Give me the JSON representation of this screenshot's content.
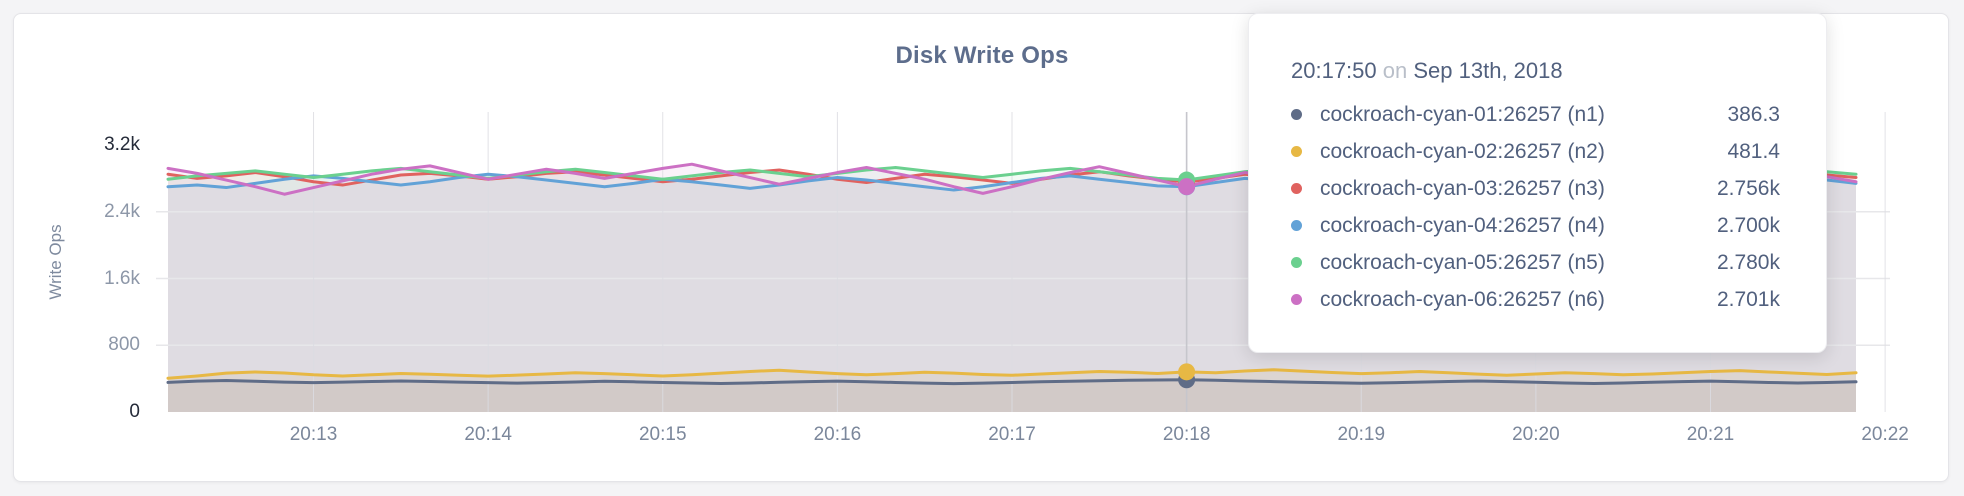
{
  "tooltip": {
    "time": "20:17:50",
    "separator": "on",
    "date": "Sep 13th, 2018",
    "rows": [
      {
        "series": "n1",
        "name": "cockroach-cyan-01:26257 (n1)",
        "value": "386.3",
        "color": "#5f6c87"
      },
      {
        "series": "n2",
        "name": "cockroach-cyan-02:26257 (n2)",
        "value": "481.4",
        "color": "#e7b844"
      },
      {
        "series": "n3",
        "name": "cockroach-cyan-03:26257 (n3)",
        "value": "2.756k",
        "color": "#e0625f"
      },
      {
        "series": "n4",
        "name": "cockroach-cyan-04:26257 (n4)",
        "value": "2.700k",
        "color": "#62a2d7"
      },
      {
        "series": "n5",
        "name": "cockroach-cyan-05:26257 (n5)",
        "value": "2.780k",
        "color": "#6bd08f"
      },
      {
        "series": "n6",
        "name": "cockroach-cyan-06:26257 (n6)",
        "value": "2.701k",
        "color": "#cc70c4"
      }
    ]
  },
  "chart_data": {
    "type": "line",
    "title": "Disk Write Ops",
    "ylabel": "Write Ops",
    "xlabel": "",
    "ylim": [
      0,
      3200
    ],
    "grid": true,
    "legend": "tooltip-only",
    "y_ticks": [
      {
        "label": "3.2k",
        "value": 3200,
        "emph": true
      },
      {
        "label": "2.4k",
        "value": 2400,
        "emph": false
      },
      {
        "label": "1.6k",
        "value": 1600,
        "emph": false
      },
      {
        "label": "800",
        "value": 800,
        "emph": false
      },
      {
        "label": "0",
        "value": 0,
        "emph": true
      }
    ],
    "x_ticks": [
      {
        "label": "20:13",
        "i": 5
      },
      {
        "label": "20:14",
        "i": 11
      },
      {
        "label": "20:15",
        "i": 17
      },
      {
        "label": "20:16",
        "i": 23
      },
      {
        "label": "20:17",
        "i": 29
      },
      {
        "label": "20:18",
        "i": 35
      },
      {
        "label": "20:19",
        "i": 41
      },
      {
        "label": "20:20",
        "i": 47
      },
      {
        "label": "20:21",
        "i": 53
      },
      {
        "label": "20:22",
        "i": 59
      }
    ],
    "hover_index": 35,
    "hover_time": "20:17:50",
    "series": [
      {
        "id": "n1",
        "name": "cockroach-cyan-01:26257 (n1)",
        "color": "#5f6c87",
        "fill_opacity": 0.12,
        "values": [
          355,
          370,
          378,
          368,
          358,
          352,
          358,
          365,
          372,
          366,
          358,
          352,
          346,
          352,
          360,
          368,
          362,
          354,
          348,
          342,
          348,
          356,
          364,
          370,
          362,
          354,
          346,
          340,
          346,
          354,
          362,
          368,
          374,
          380,
          384,
          386.3,
          380,
          372,
          364,
          356,
          350,
          344,
          350,
          358,
          366,
          372,
          364,
          356,
          348,
          342,
          348,
          356,
          364,
          370,
          362,
          354,
          348,
          354,
          362
        ]
      },
      {
        "id": "n2",
        "name": "cockroach-cyan-02:26257 (n2)",
        "color": "#e7b844",
        "fill_opacity": 0.12,
        "values": [
          405,
          432,
          466,
          480,
          468,
          446,
          432,
          446,
          462,
          452,
          440,
          430,
          442,
          456,
          470,
          460,
          446,
          432,
          446,
          466,
          486,
          500,
          480,
          460,
          446,
          460,
          476,
          466,
          450,
          440,
          456,
          470,
          486,
          476,
          462,
          481.4,
          470,
          492,
          506,
          490,
          474,
          460,
          470,
          486,
          470,
          454,
          440,
          456,
          470,
          460,
          446,
          456,
          470,
          486,
          496,
          480,
          464,
          450,
          470
        ]
      },
      {
        "id": "n3",
        "name": "cockroach-cyan-03:26257 (n3)",
        "color": "#e0625f",
        "fill_opacity": 0.09,
        "values": [
          2850,
          2800,
          2830,
          2870,
          2820,
          2760,
          2720,
          2780,
          2840,
          2860,
          2830,
          2790,
          2820,
          2860,
          2880,
          2840,
          2800,
          2760,
          2790,
          2830,
          2870,
          2900,
          2850,
          2790,
          2750,
          2800,
          2850,
          2820,
          2780,
          2740,
          2790,
          2840,
          2880,
          2830,
          2790,
          2756,
          2800,
          2850,
          2820,
          2780,
          2830,
          2870,
          2840,
          2800,
          2760,
          2810,
          2860,
          2890,
          2850,
          2810,
          2770,
          2820,
          2860,
          2830,
          2790,
          2750,
          2800,
          2840,
          2810
        ]
      },
      {
        "id": "n4",
        "name": "cockroach-cyan-04:26257 (n4)",
        "color": "#62a2d7",
        "fill_opacity": 0.09,
        "values": [
          2700,
          2720,
          2690,
          2740,
          2790,
          2830,
          2800,
          2760,
          2720,
          2760,
          2810,
          2850,
          2820,
          2780,
          2740,
          2700,
          2740,
          2790,
          2760,
          2720,
          2680,
          2720,
          2770,
          2810,
          2780,
          2740,
          2700,
          2660,
          2700,
          2750,
          2800,
          2830,
          2790,
          2750,
          2710,
          2700,
          2750,
          2800,
          2770,
          2730,
          2690,
          2730,
          2780,
          2820,
          2790,
          2750,
          2710,
          2750,
          2800,
          2840,
          2810,
          2770,
          2730,
          2770,
          2820,
          2850,
          2820,
          2780,
          2740
        ]
      },
      {
        "id": "n5",
        "name": "cockroach-cyan-05:26257 (n5)",
        "color": "#6bd08f",
        "fill_opacity": 0.09,
        "values": [
          2790,
          2830,
          2860,
          2890,
          2850,
          2810,
          2850,
          2890,
          2920,
          2880,
          2840,
          2800,
          2840,
          2880,
          2910,
          2870,
          2830,
          2790,
          2830,
          2870,
          2900,
          2860,
          2820,
          2860,
          2900,
          2930,
          2890,
          2850,
          2810,
          2850,
          2890,
          2920,
          2880,
          2840,
          2800,
          2780,
          2830,
          2880,
          2910,
          2870,
          2830,
          2870,
          2910,
          2880,
          2840,
          2800,
          2840,
          2880,
          2850,
          2810,
          2850,
          2890,
          2920,
          2880,
          2840,
          2800,
          2840,
          2880,
          2850
        ]
      },
      {
        "id": "n6",
        "name": "cockroach-cyan-06:26257 (n6)",
        "color": "#cc70c4",
        "fill_opacity": 0.09,
        "values": [
          2920,
          2860,
          2780,
          2700,
          2610,
          2690,
          2770,
          2850,
          2910,
          2950,
          2870,
          2790,
          2850,
          2910,
          2860,
          2800,
          2860,
          2920,
          2970,
          2890,
          2810,
          2730,
          2800,
          2870,
          2930,
          2860,
          2790,
          2700,
          2620,
          2700,
          2790,
          2870,
          2940,
          2860,
          2780,
          2701,
          2790,
          2870,
          2820,
          2760,
          2700,
          2770,
          2850,
          2930,
          2870,
          2790,
          2720,
          2790,
          2860,
          2940,
          2880,
          2800,
          2730,
          2800,
          2880,
          2960,
          2890,
          2820,
          2760
        ]
      }
    ]
  }
}
